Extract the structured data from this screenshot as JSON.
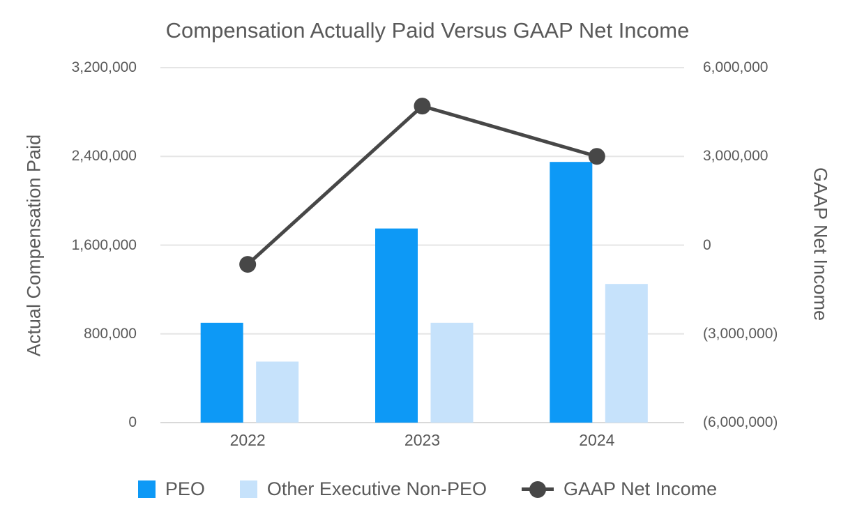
{
  "colors": {
    "peo_bar": "#0D99F6",
    "non_peo_bar": "#C6E2FB",
    "line": "#474747",
    "text": "#595959",
    "grid": "#E5E5E5",
    "baseline": "#D9D9D9"
  },
  "chart_data": {
    "type": "bar",
    "subtype": "grouped bars with overlay line on secondary axis",
    "title": "Compensation Actually Paid Versus GAAP Net Income",
    "categories": [
      "2022",
      "2023",
      "2024"
    ],
    "series": [
      {
        "name": "PEO",
        "type": "bar",
        "axis": "left",
        "color": "#0D99F6",
        "values": [
          900000,
          1750000,
          2350000
        ]
      },
      {
        "name": "Other Executive Non-PEO",
        "type": "bar",
        "axis": "left",
        "color": "#C6E2FB",
        "values": [
          550000,
          900000,
          1250000
        ]
      },
      {
        "name": "GAAP Net Income",
        "type": "line",
        "axis": "right",
        "color": "#474747",
        "values": [
          -650000,
          4700000,
          3000000
        ]
      }
    ],
    "left_axis": {
      "label": "Actual Compensation Paid",
      "min": 0,
      "max": 3200000,
      "ticks": [
        "0",
        "800,000",
        "1,600,000",
        "2,400,000",
        "3,200,000"
      ]
    },
    "right_axis": {
      "label": "GAAP Net Income",
      "min": -6000000,
      "max": 6000000,
      "ticks": [
        "(6,000,000)",
        "(3,000,000)",
        "0",
        "3,000,000",
        "6,000,000"
      ]
    },
    "grid": true,
    "legend_position": "bottom",
    "legend": [
      "PEO",
      "Other Executive Non-PEO",
      "GAAP Net Income"
    ]
  }
}
